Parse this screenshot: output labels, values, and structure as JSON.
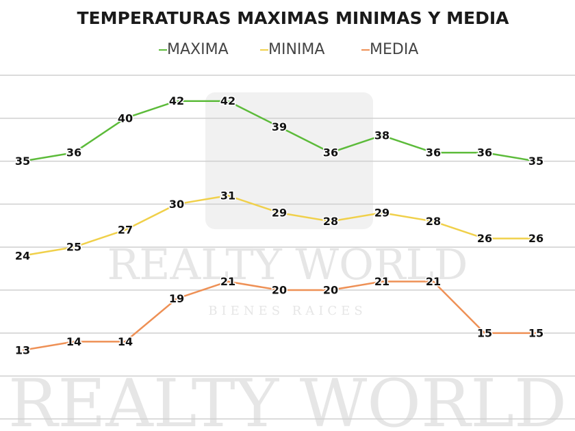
{
  "chart_data": {
    "type": "line",
    "title": "TEMPERATURAS MAXIMAS MINIMAS Y MEDIA",
    "categories": [
      null,
      null,
      null,
      null,
      null,
      null,
      null,
      null,
      null,
      null,
      null
    ],
    "series": [
      {
        "name": "MAXIMA",
        "color": "#5cbb3a",
        "values": [
          35,
          36,
          40,
          42,
          42,
          39,
          36,
          38,
          36,
          36,
          35
        ]
      },
      {
        "name": "MINIMA",
        "color": "#f0d04a",
        "values": [
          24,
          25,
          27,
          30,
          31,
          29,
          28,
          29,
          28,
          26,
          26
        ]
      },
      {
        "name": "MEDIA",
        "color": "#ee9055",
        "values": [
          13,
          14,
          14,
          19,
          21,
          20,
          20,
          21,
          21,
          15,
          15
        ]
      }
    ],
    "ylim": [
      3.6,
      45.8
    ],
    "yticks": [
      5,
      10,
      15,
      20,
      25,
      30,
      35,
      40,
      45
    ],
    "grid": true,
    "legend": "top"
  },
  "watermark": {
    "brand": "REALTY WORLD",
    "tagline": "BIENES RAICES"
  }
}
